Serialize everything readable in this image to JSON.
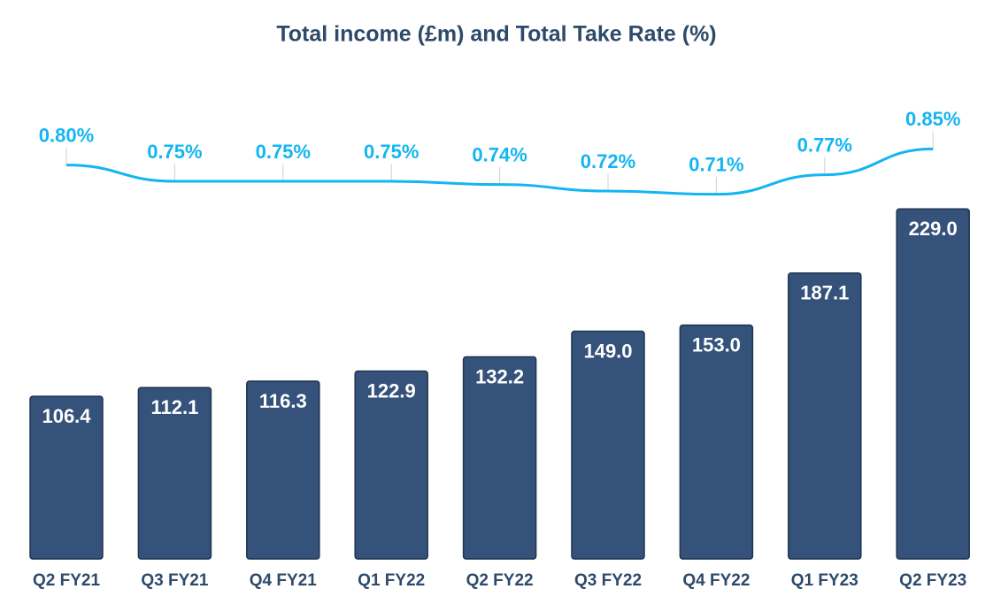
{
  "chart_data": {
    "type": "bar-line",
    "title": "Total income (£m) and Total Take Rate (%)",
    "categories": [
      "Q2 FY21",
      "Q3 FY21",
      "Q4 FY21",
      "Q1 FY22",
      "Q2 FY22",
      "Q3 FY22",
      "Q4 FY22",
      "Q1 FY23",
      "Q2 FY23"
    ],
    "series": [
      {
        "type": "bar",
        "color": "#34527a",
        "values": [
          106.4,
          112.1,
          116.3,
          122.9,
          132.2,
          149.0,
          153.0,
          187.1,
          229.0
        ],
        "value_labels": [
          "106.4",
          "112.1",
          "116.3",
          "122.9",
          "132.2",
          "149.0",
          "153.0",
          "187.1",
          "229.0"
        ]
      },
      {
        "type": "line",
        "color": "#13b5f2",
        "axis": "y2",
        "values": [
          0.8,
          0.75,
          0.75,
          0.75,
          0.74,
          0.72,
          0.71,
          0.77,
          0.85
        ],
        "value_labels": [
          "0.80%",
          "0.75%",
          "0.75%",
          "0.75%",
          "0.74%",
          "0.72%",
          "0.71%",
          "0.77%",
          "0.85%"
        ]
      }
    ],
    "ylim": [
      0,
      250
    ],
    "y2lim": [
      0.6,
      0.9
    ]
  }
}
